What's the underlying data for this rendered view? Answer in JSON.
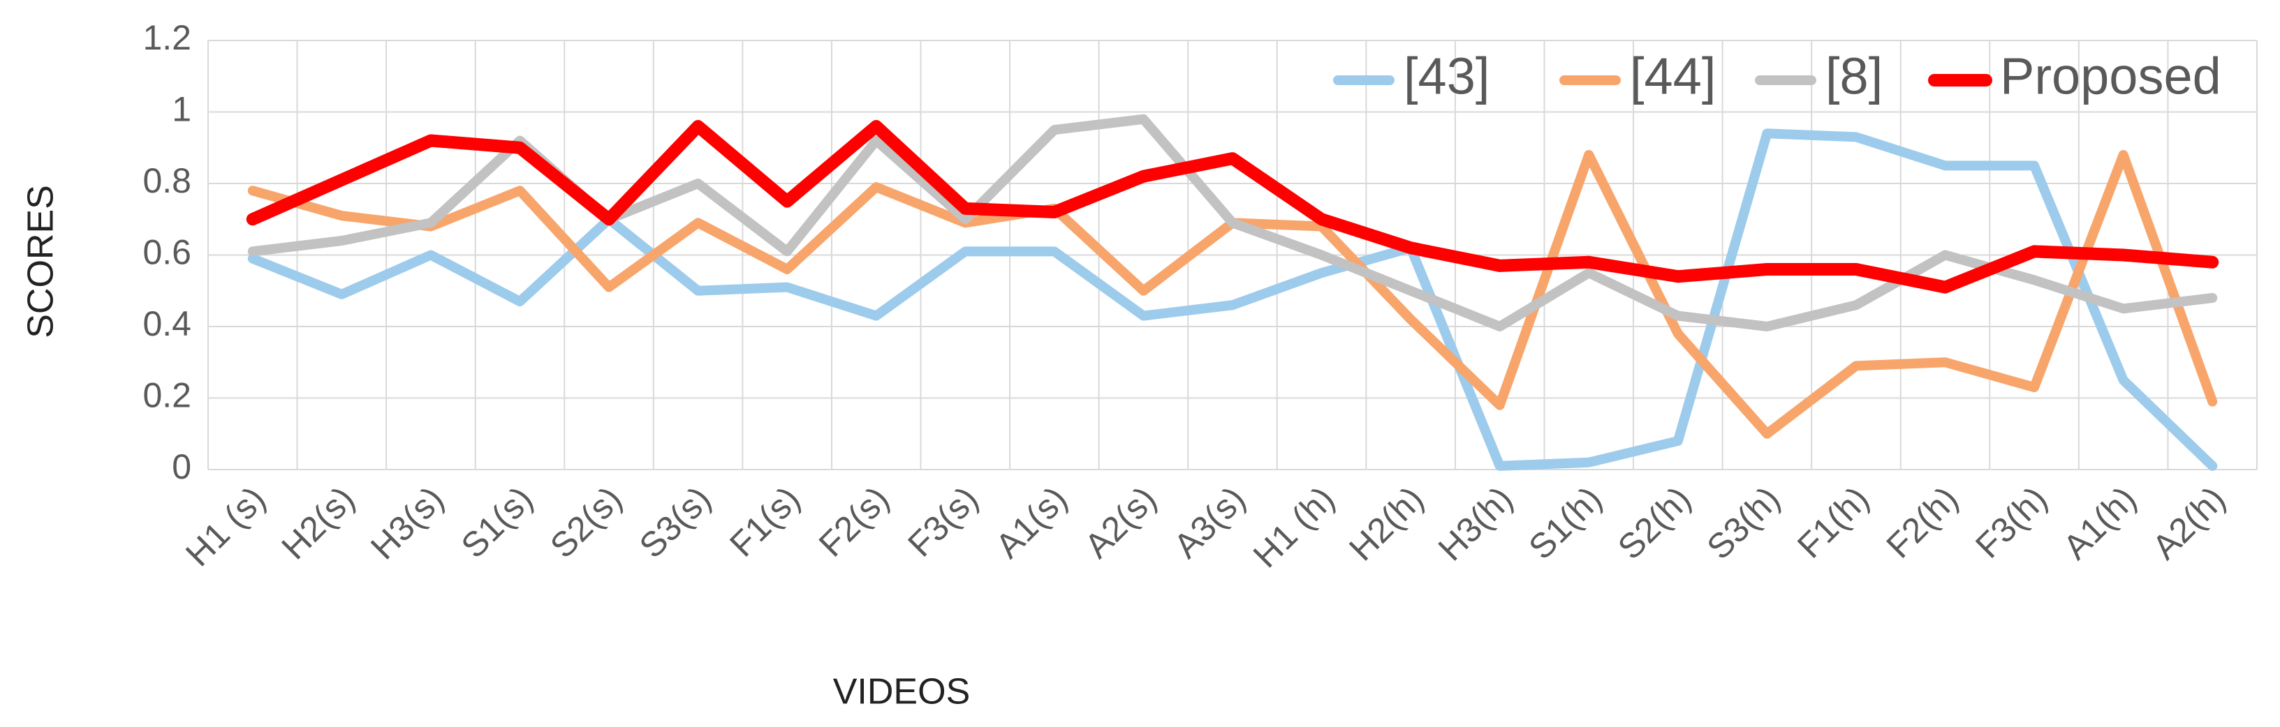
{
  "chart_data": {
    "type": "line",
    "x_label": "VIDEOS",
    "y_label": "SCORES",
    "categories": [
      "H1 (s)",
      "H2(s)",
      "H3(s)",
      "S1(s)",
      "S2(s)",
      "S3(s)",
      "F1(s)",
      "F2(s)",
      "F3(s)",
      "A1(s)",
      "A2(s)",
      "A3(s)",
      "H1 (h)",
      "H2(h)",
      "H3(h)",
      "S1(h)",
      "S2(h)",
      "S3(h)",
      "F1(h)",
      "F2(h)",
      "F3(h)",
      "A1(h)",
      "A2(h)"
    ],
    "series": [
      {
        "name": "[43]",
        "color": "#9dcbec",
        "values": [
          0.59,
          0.49,
          0.6,
          0.47,
          0.7,
          0.5,
          0.51,
          0.43,
          0.61,
          0.61,
          0.43,
          0.46,
          0.55,
          0.62,
          0.01,
          0.02,
          0.08,
          0.94,
          0.93,
          0.85,
          0.85,
          0.25,
          0.01
        ]
      },
      {
        "name": "[44]",
        "color": "#f8a56c",
        "values": [
          0.78,
          0.71,
          0.68,
          0.78,
          0.51,
          0.69,
          0.56,
          0.79,
          0.69,
          0.73,
          0.5,
          0.69,
          0.68,
          0.42,
          0.18,
          0.88,
          0.38,
          0.1,
          0.29,
          0.3,
          0.23,
          0.88,
          0.19
        ]
      },
      {
        "name": "[8]",
        "color": "#c2c2c2",
        "values": [
          0.61,
          0.64,
          0.69,
          0.92,
          0.7,
          0.8,
          0.61,
          0.92,
          0.7,
          0.95,
          0.98,
          0.69,
          0.6,
          0.5,
          0.4,
          0.55,
          0.43,
          0.4,
          0.46,
          0.6,
          0.53,
          0.45,
          0.48
        ]
      },
      {
        "name": "Proposed",
        "color": "#ff0000",
        "values": [
          0.7,
          0.81,
          0.92,
          0.9,
          0.7,
          0.96,
          0.75,
          0.96,
          0.73,
          0.72,
          0.82,
          0.87,
          0.7,
          0.62,
          0.57,
          0.58,
          0.54,
          0.56,
          0.56,
          0.51,
          0.61,
          0.6,
          0.58
        ]
      }
    ],
    "ylim": [
      0,
      1.2
    ],
    "yticks": [
      0,
      0.2,
      0.4,
      0.6,
      0.8,
      1,
      1.2
    ],
    "grid": true,
    "legend": "top-right"
  }
}
